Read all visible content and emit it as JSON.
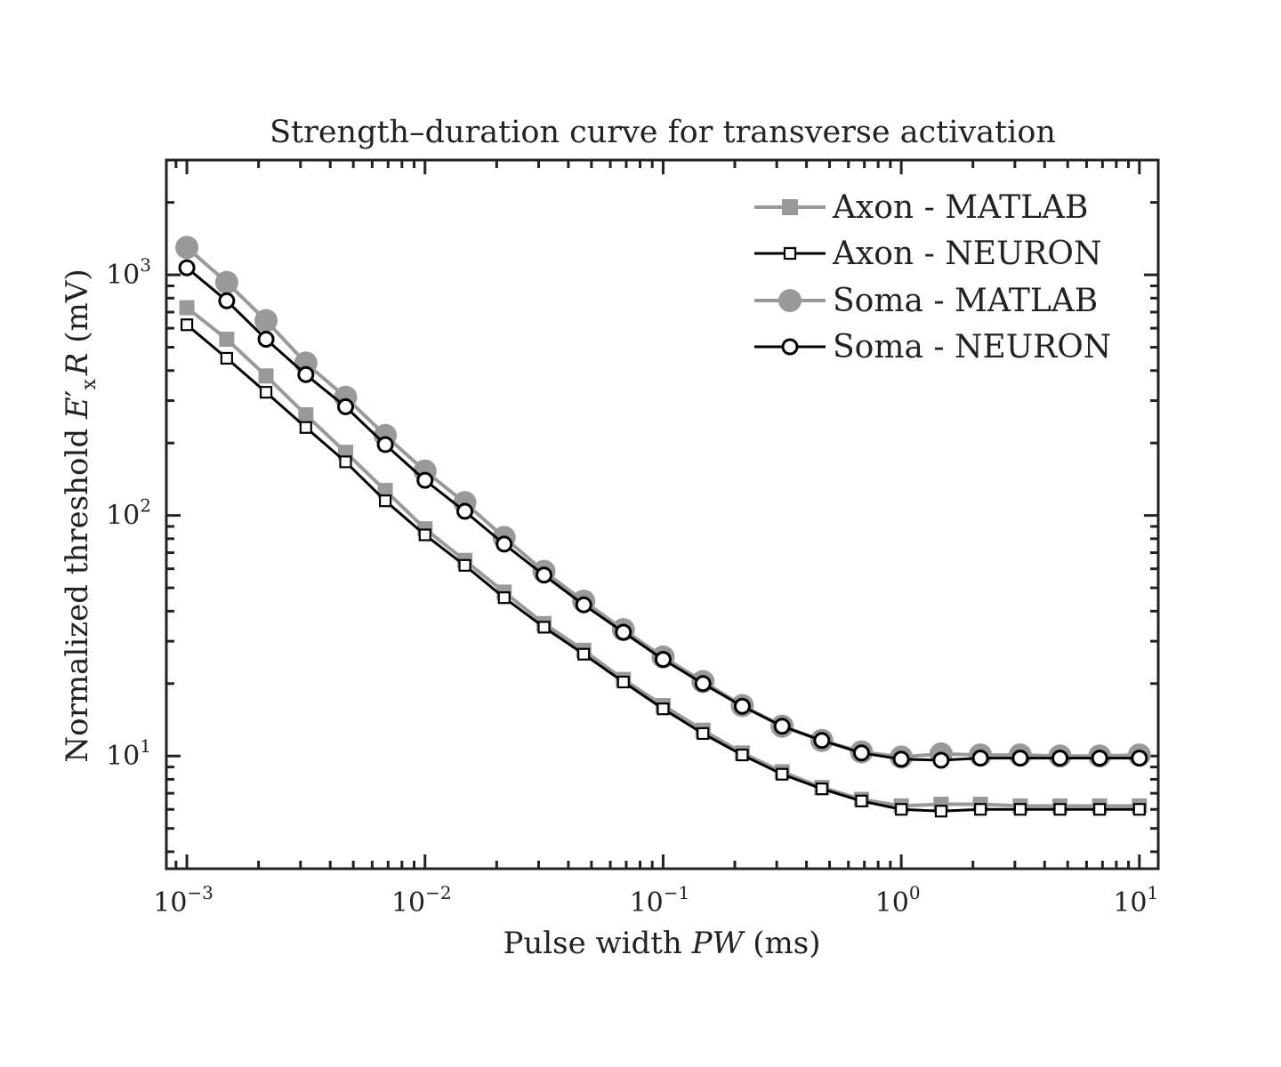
{
  "chart_data": {
    "type": "line",
    "title": "Strength–duration curve for transverse activation",
    "xlabel": {
      "prefix": "Pulse width ",
      "symbol": "PW",
      "suffix": " (ms)"
    },
    "ylabel": {
      "prefix": "Normalized threshold ",
      "symbol_main": "E",
      "symbol_prime": "′",
      "symbol_sub": "x",
      "symbol_tail": "R",
      "suffix": " (mV)"
    },
    "x_scale": "log",
    "y_scale": "log",
    "xlim": [
      0.00082,
      12
    ],
    "ylim": [
      3.4,
      3000
    ],
    "grid": false,
    "legend_position": "top-right",
    "x_tick_labels": [
      {
        "base": "10",
        "exp": "−3",
        "value": 0.001
      },
      {
        "base": "10",
        "exp": "−2",
        "value": 0.01
      },
      {
        "base": "10",
        "exp": "−1",
        "value": 0.1
      },
      {
        "base": "10",
        "exp": "0",
        "value": 1
      },
      {
        "base": "10",
        "exp": "1",
        "value": 10
      }
    ],
    "y_tick_labels": [
      {
        "base": "10",
        "exp": "1",
        "value": 10
      },
      {
        "base": "10",
        "exp": "2",
        "value": 100
      },
      {
        "base": "10",
        "exp": "3",
        "value": 1000
      }
    ],
    "x": [
      0.001,
      0.00147,
      0.00215,
      0.00316,
      0.00464,
      0.00681,
      0.01,
      0.0147,
      0.0215,
      0.0316,
      0.0464,
      0.0681,
      0.1,
      0.147,
      0.215,
      0.316,
      0.464,
      0.681,
      1,
      1.47,
      2.15,
      3.16,
      4.64,
      6.81,
      10
    ],
    "series": [
      {
        "name": "Axon - MATLAB",
        "color": "#999999",
        "marker": "square-filled",
        "values": [
          730,
          540,
          380,
          262,
          183,
          127,
          88,
          65,
          48,
          35.5,
          27.5,
          20.8,
          16.2,
          12.8,
          10.3,
          8.6,
          7.4,
          6.6,
          6.2,
          6.3,
          6.3,
          6.2,
          6.2,
          6.2,
          6.2
        ]
      },
      {
        "name": "Axon - NEURON",
        "color": "#000000",
        "marker": "square-open",
        "values": [
          620,
          450,
          325,
          232,
          167,
          115,
          83,
          62,
          45.5,
          34.3,
          26.5,
          20.3,
          15.7,
          12.4,
          10.1,
          8.4,
          7.3,
          6.5,
          6.0,
          5.9,
          6.0,
          6.0,
          6.0,
          6.0,
          6.0
        ]
      },
      {
        "name": "Soma - MATLAB",
        "color": "#999999",
        "marker": "circle-filled",
        "values": [
          1300,
          930,
          645,
          430,
          310,
          215,
          153,
          113,
          81,
          58.5,
          44,
          33.5,
          25.8,
          20.4,
          16.2,
          13.3,
          11.6,
          10.4,
          9.9,
          10.2,
          10.1,
          10.1,
          10.0,
          10.0,
          10.1
        ]
      },
      {
        "name": "Soma - NEURON",
        "color": "#000000",
        "marker": "circle-open",
        "values": [
          1070,
          780,
          540,
          385,
          283,
          197,
          140,
          104,
          76,
          56.5,
          42.5,
          32.7,
          25.2,
          20,
          16.1,
          13.3,
          11.6,
          10.3,
          9.7,
          9.6,
          9.8,
          9.8,
          9.8,
          9.8,
          9.8
        ]
      }
    ]
  }
}
